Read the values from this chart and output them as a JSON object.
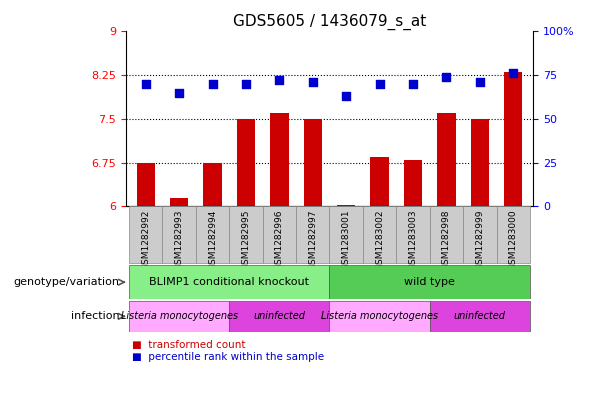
{
  "title": "GDS5605 / 1436079_s_at",
  "samples": [
    "GSM1282992",
    "GSM1282993",
    "GSM1282994",
    "GSM1282995",
    "GSM1282996",
    "GSM1282997",
    "GSM1283001",
    "GSM1283002",
    "GSM1283003",
    "GSM1282998",
    "GSM1282999",
    "GSM1283000"
  ],
  "bar_values": [
    6.75,
    6.15,
    6.75,
    7.5,
    7.6,
    7.5,
    6.02,
    6.85,
    6.8,
    7.6,
    7.5,
    8.3
  ],
  "dot_values": [
    70,
    65,
    70,
    70,
    72,
    71,
    63,
    70,
    70,
    74,
    71,
    76
  ],
  "bar_color": "#cc0000",
  "dot_color": "#0000cc",
  "ylim_left": [
    6,
    9
  ],
  "ylim_right": [
    0,
    100
  ],
  "yticks_left": [
    6,
    6.75,
    7.5,
    8.25,
    9
  ],
  "yticks_right": [
    0,
    25,
    50,
    75,
    100
  ],
  "ytick_labels_left": [
    "6",
    "6.75",
    "7.5",
    "8.25",
    "9"
  ],
  "ytick_labels_right": [
    "0",
    "25",
    "50",
    "75",
    "100%"
  ],
  "hlines": [
    6.75,
    7.5,
    8.25
  ],
  "xtick_bg_color": "#cccccc",
  "genotype_groups": [
    {
      "label": "BLIMP1 conditional knockout",
      "start": 0,
      "end": 6,
      "color": "#88ee88"
    },
    {
      "label": "wild type",
      "start": 6,
      "end": 12,
      "color": "#55cc55"
    }
  ],
  "infection_groups": [
    {
      "label": "Listeria monocytogenes",
      "start": 0,
      "end": 3,
      "color": "#ffaaff"
    },
    {
      "label": "uninfected",
      "start": 3,
      "end": 6,
      "color": "#dd44dd"
    },
    {
      "label": "Listeria monocytogenes",
      "start": 6,
      "end": 9,
      "color": "#ffaaff"
    },
    {
      "label": "uninfected",
      "start": 9,
      "end": 12,
      "color": "#dd44dd"
    }
  ],
  "legend_items": [
    {
      "label": "transformed count",
      "color": "#cc0000"
    },
    {
      "label": "percentile rank within the sample",
      "color": "#0000cc"
    }
  ],
  "left_labels": [
    "genotype/variation",
    "infection"
  ],
  "bar_bottom": 6,
  "bar_width": 0.55,
  "dot_size": 28
}
